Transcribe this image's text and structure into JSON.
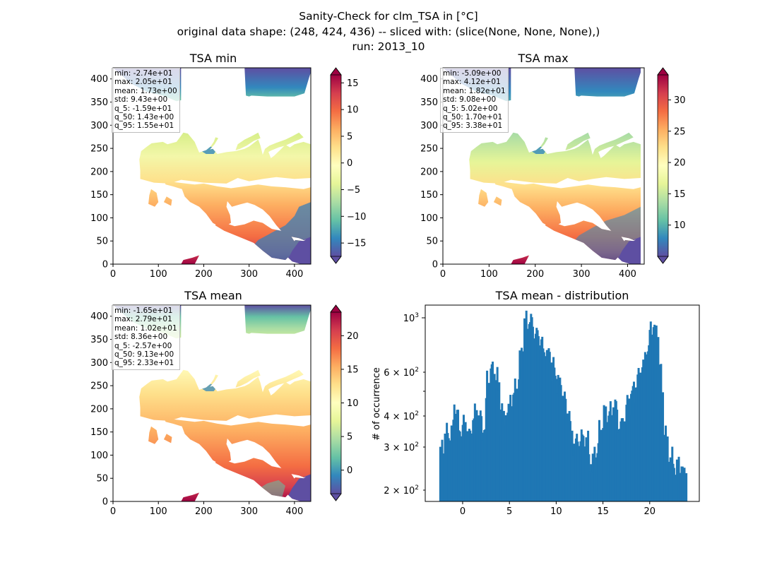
{
  "suptitle": {
    "line1": "Sanity-Check for clm_TSA in [°C]",
    "line2": "original data shape: (248, 424, 436) -- sliced with: (slice(None, None, None),)",
    "line3": "run: 2013_10"
  },
  "panels": [
    {
      "title": "TSA min",
      "stats": [
        "min: -2.74e+01",
        "max: 2.05e+01",
        "mean: 1.73e+00",
        "std: 9.43e+00",
        "q_5: -1.59e+01",
        "q_50: 1.43e+00",
        "q_95: 1.55e+01"
      ],
      "colorbar_ticks": [
        "15",
        "10",
        "5",
        "0",
        "−5",
        "−10",
        "−15"
      ]
    },
    {
      "title": "TSA max",
      "stats": [
        "min: -5.09e+00",
        "max: 4.12e+01",
        "mean: 1.82e+01",
        "std: 9.08e+00",
        "q_5: 5.02e+00",
        "q_50: 1.70e+01",
        "q_95: 3.38e+01"
      ],
      "colorbar_ticks": [
        "30",
        "25",
        "20",
        "15",
        "10"
      ]
    },
    {
      "title": "TSA mean",
      "stats": [
        "min: -1.65e+01",
        "max: 2.79e+01",
        "mean: 1.02e+01",
        "std: 8.36e+00",
        "q_5: -2.57e+00",
        "q_50: 9.13e+00",
        "q_95: 2.33e+01"
      ],
      "colorbar_ticks": [
        "20",
        "15",
        "10",
        "5",
        "0"
      ]
    }
  ],
  "map_axis": {
    "x_ticks": [
      "0",
      "100",
      "200",
      "300",
      "400"
    ],
    "y_ticks": [
      "0",
      "50",
      "100",
      "150",
      "200",
      "250",
      "300",
      "350",
      "400"
    ]
  },
  "hist": {
    "title": "TSA mean - distribution",
    "ylabel": "# of occurrence",
    "x_ticks": [
      "0",
      "5",
      "10",
      "15",
      "20"
    ]
  },
  "colors": {
    "bar": "#1f77b4",
    "spectral": [
      "#5e4fa2",
      "#3288bd",
      "#66c2a5",
      "#abdda4",
      "#e6f598",
      "#ffffbf",
      "#fee08b",
      "#fdae61",
      "#f46d43",
      "#d53e4f",
      "#9e0142"
    ]
  },
  "chart_data": [
    {
      "type": "heatmap",
      "title": "TSA min",
      "xlim": [
        0,
        436
      ],
      "ylim": [
        0,
        424
      ],
      "colormap": "Spectral_r",
      "colorbar_range": [
        -17.5,
        16.5
      ],
      "colorbar_ticks": [
        -15,
        -10,
        -5,
        0,
        5,
        10,
        15
      ],
      "grid": false
    },
    {
      "type": "heatmap",
      "title": "TSA max",
      "xlim": [
        0,
        436
      ],
      "ylim": [
        0,
        424
      ],
      "colormap": "Spectral_r",
      "colorbar_range": [
        5,
        34
      ],
      "colorbar_ticks": [
        10,
        15,
        20,
        25,
        30
      ],
      "grid": false
    },
    {
      "type": "heatmap",
      "title": "TSA mean",
      "xlim": [
        0,
        436
      ],
      "ylim": [
        0,
        424
      ],
      "colormap": "Spectral_r",
      "colorbar_range": [
        -3.5,
        23.5
      ],
      "colorbar_ticks": [
        0,
        5,
        10,
        15,
        20
      ],
      "grid": false
    },
    {
      "type": "bar",
      "title": "TSA mean - distribution",
      "ylabel": "# of occurrence",
      "yscale": "log",
      "xlim": [
        -4,
        25.3
      ],
      "ylim": [
        180,
        1150
      ],
      "y_ticks": [
        200,
        300,
        400,
        600,
        1000
      ],
      "x_ticks": [
        0,
        5,
        10,
        15,
        20
      ],
      "bin_width": 0.2,
      "x": [
        -2.5,
        -2.0,
        -1.5,
        -1.0,
        -0.5,
        0.0,
        0.5,
        1.0,
        1.5,
        2.0,
        2.5,
        3.0,
        3.5,
        4.0,
        4.5,
        5.0,
        5.5,
        6.0,
        6.5,
        7.0,
        7.5,
        8.0,
        8.5,
        9.0,
        9.5,
        10.0,
        10.5,
        11.0,
        11.5,
        12.0,
        12.5,
        13.0,
        13.5,
        14.0,
        14.5,
        15.0,
        15.5,
        16.0,
        16.5,
        17.0,
        17.5,
        18.0,
        18.5,
        19.0,
        19.5,
        20.0,
        20.5,
        21.0,
        21.5,
        22.0,
        22.5,
        23.0
      ],
      "values": [
        290,
        350,
        330,
        440,
        330,
        390,
        300,
        430,
        400,
        330,
        600,
        640,
        540,
        360,
        420,
        470,
        520,
        690,
        1000,
        1000,
        860,
        830,
        720,
        740,
        600,
        560,
        460,
        400,
        300,
        320,
        330,
        320,
        240,
        280,
        350,
        420,
        410,
        460,
        350,
        380,
        470,
        520,
        580,
        660,
        760,
        960,
        860,
        430,
        290,
        270,
        240,
        250
      ]
    }
  ]
}
